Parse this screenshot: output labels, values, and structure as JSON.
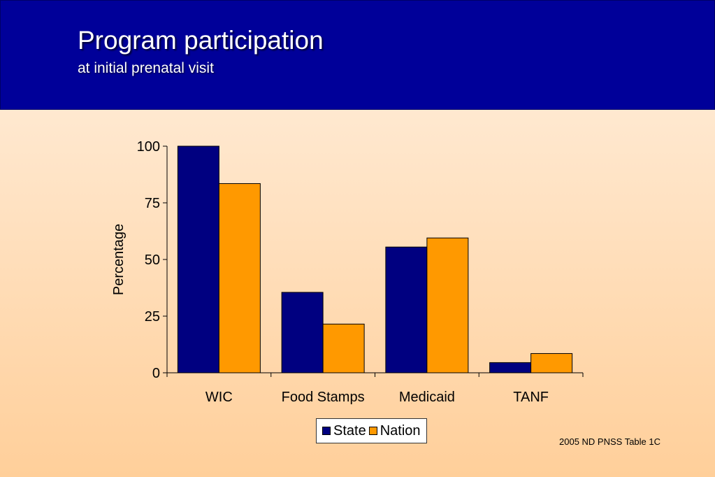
{
  "slide": {
    "title": "Program participation",
    "subtitle": "at initial prenatal visit",
    "source": "2005 ND PNSS Table 1C"
  },
  "colors": {
    "header_bg": "#000099",
    "state": "#000080",
    "nation": "#ff9900"
  },
  "chart_data": {
    "type": "bar",
    "categories": [
      "WIC",
      "Food Stamps",
      "Medicaid",
      "TANF"
    ],
    "series": [
      {
        "name": "State",
        "values": [
          100,
          35.5,
          55.5,
          4.5
        ],
        "color": "#000080"
      },
      {
        "name": "Nation",
        "values": [
          83.5,
          21.5,
          59.5,
          8.5
        ],
        "color": "#ff9900"
      }
    ],
    "ylabel": "Percentage",
    "ylim": [
      0,
      100
    ],
    "yticks": [
      "0",
      "25",
      "50",
      "75",
      "100"
    ],
    "grid": false,
    "legend_position": "bottom"
  }
}
